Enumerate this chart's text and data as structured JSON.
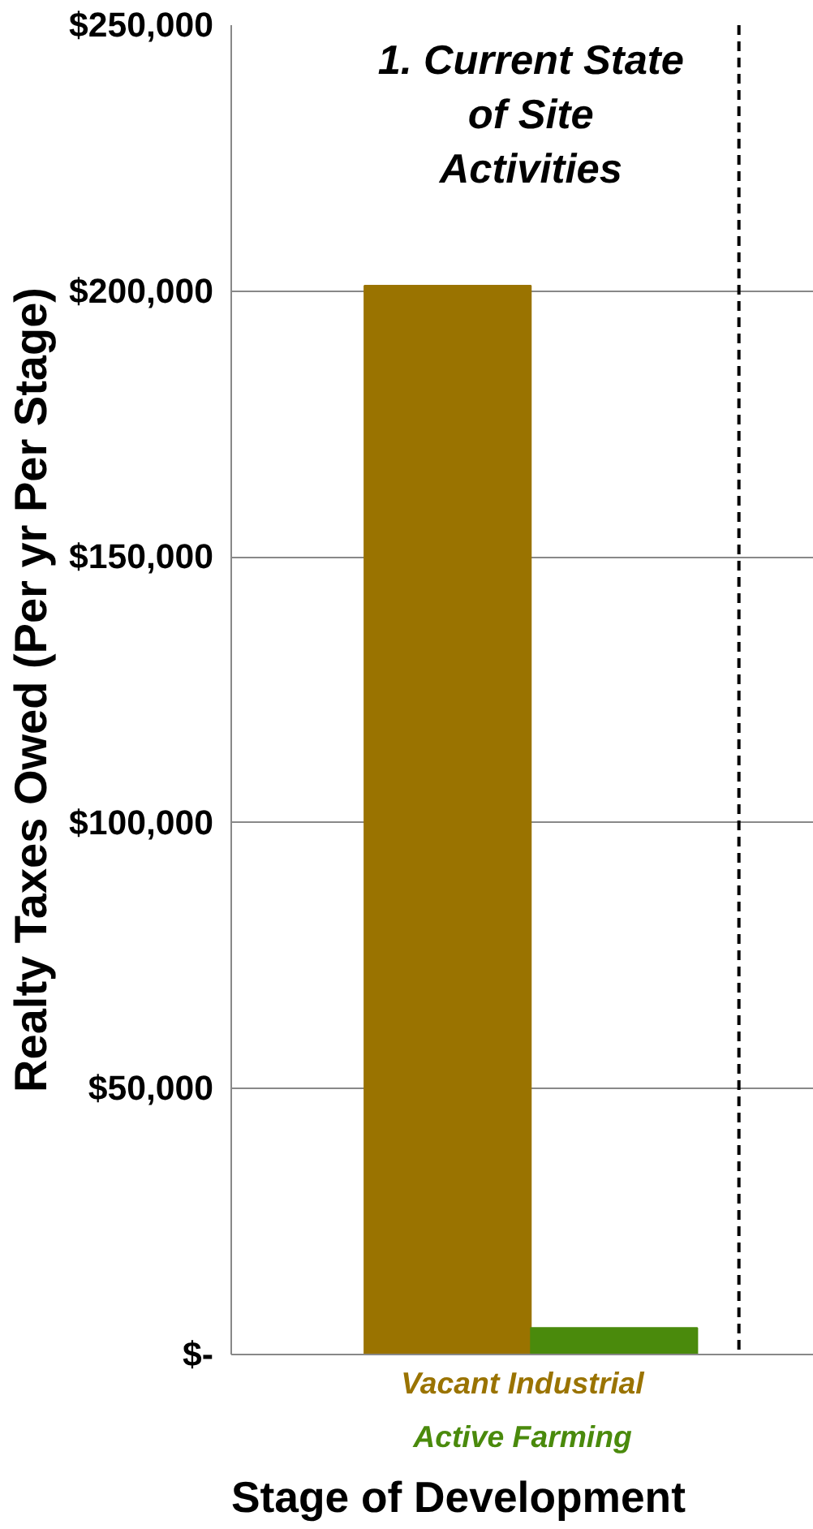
{
  "chart_data": {
    "type": "bar",
    "categories": [
      null
    ],
    "series": [
      {
        "name": "Vacant Industrial",
        "color": "#9a7300",
        "values": [
          201000
        ]
      },
      {
        "name": "Active Farming",
        "color": "#4a8a0c",
        "values": [
          5000
        ]
      }
    ],
    "ylabel": "Realty Taxes Owed (Per yr Per Stage)",
    "xlabel": "Stage of Development",
    "annotations": [
      "1. Current State of Site Activities"
    ],
    "ylim": [
      0,
      250000
    ],
    "yticks": [
      {
        "value": 0,
        "label": "$-"
      },
      {
        "value": 50000,
        "label": "$50,000"
      },
      {
        "value": 100000,
        "label": "$100,000"
      },
      {
        "value": 150000,
        "label": "$150,000"
      },
      {
        "value": 200000,
        "label": "$200,000"
      },
      {
        "value": 250000,
        "label": "$250,000"
      }
    ],
    "grid": "y",
    "legend": "bottom"
  }
}
